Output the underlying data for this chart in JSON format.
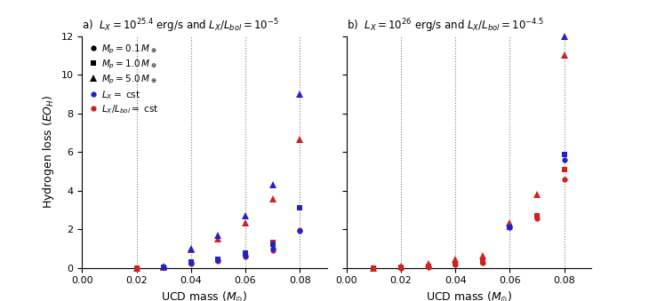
{
  "panel_a_title": "a)  $L_X = 10^{25.4}$ erg/s and $L_X/L_{bol} = 10^{-5}$",
  "panel_b_title": "b)  $L_X = 10^{26}$ erg/s and $L_X/L_{bol} = 10^{-4.5}$",
  "xlabel": "UCD mass ($M_{\\odot}$)",
  "ylabel": "Hydrogen loss ($EO_H$)",
  "ucd_masses": [
    0.01,
    0.02,
    0.03,
    0.04,
    0.05,
    0.06,
    0.07,
    0.08
  ],
  "dashed_lines": [
    0.02,
    0.04,
    0.06,
    0.08
  ],
  "panel_a": {
    "blue": {
      "circle": [
        null,
        null,
        0.04,
        0.25,
        0.38,
        0.65,
        1.0,
        1.9
      ],
      "square": [
        null,
        null,
        0.05,
        0.3,
        0.45,
        0.75,
        1.25,
        3.1
      ],
      "triangle": [
        null,
        null,
        0.08,
        1.0,
        1.7,
        2.7,
        4.3,
        9.0
      ]
    },
    "red": {
      "circle": [
        null,
        0.0,
        0.02,
        0.2,
        0.35,
        0.6,
        0.9,
        1.95
      ],
      "square": [
        null,
        0.0,
        0.03,
        0.25,
        0.42,
        0.7,
        1.3,
        3.1
      ],
      "triangle": [
        null,
        0.0,
        0.05,
        0.95,
        1.5,
        2.35,
        3.55,
        6.65
      ]
    }
  },
  "panel_b": {
    "blue": {
      "circle": [
        null,
        null,
        null,
        null,
        null,
        2.1,
        null,
        5.6
      ],
      "square": [
        null,
        null,
        null,
        null,
        null,
        2.1,
        null,
        5.85
      ],
      "triangle": [
        null,
        null,
        null,
        null,
        null,
        null,
        null,
        12.0
      ]
    },
    "red": {
      "circle": [
        0.0,
        0.0,
        0.05,
        0.15,
        0.25,
        2.1,
        2.55,
        4.6
      ],
      "square": [
        0.0,
        0.05,
        0.1,
        0.2,
        0.3,
        2.1,
        2.7,
        5.1
      ],
      "triangle": [
        0.0,
        0.1,
        0.2,
        0.45,
        0.65,
        2.35,
        3.8,
        11.0
      ]
    }
  },
  "ylim": [
    0,
    12
  ],
  "yticks": [
    0,
    2,
    4,
    6,
    8,
    10,
    12
  ],
  "xlim": [
    0.0,
    0.09
  ],
  "xticks": [
    0.0,
    0.02,
    0.04,
    0.06,
    0.08
  ],
  "blue_color": "#2222cc",
  "red_color": "#cc2222",
  "marker_size_circle": 4.5,
  "marker_size_square": 4.5,
  "marker_size_triangle": 5.5
}
